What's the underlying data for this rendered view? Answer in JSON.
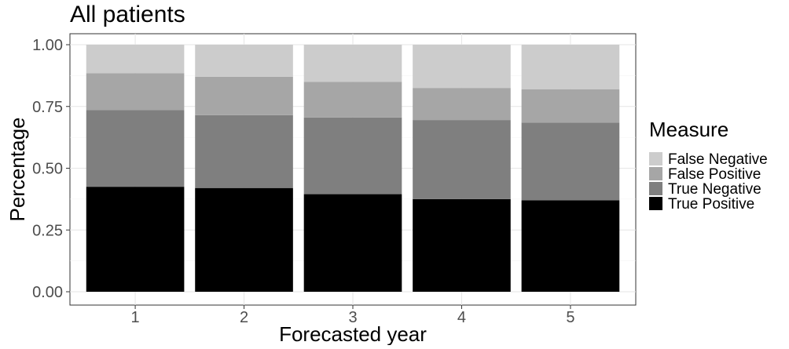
{
  "chart_data": {
    "type": "bar",
    "stacked": true,
    "title": "All patients",
    "xlabel": "Forecasted year",
    "ylabel": "Percentage",
    "categories": [
      "1",
      "2",
      "3",
      "4",
      "5"
    ],
    "ylim": [
      0,
      1
    ],
    "yticks": [
      "0.00",
      "0.25",
      "0.50",
      "0.75",
      "1.00"
    ],
    "grid": true,
    "legend": {
      "title": "Measure",
      "position": "right",
      "entries": [
        "False Negative",
        "False Positive",
        "True Negative",
        "True Positive"
      ]
    },
    "series": [
      {
        "name": "True Positive",
        "color": "#000000",
        "values": [
          0.425,
          0.42,
          0.395,
          0.375,
          0.37
        ]
      },
      {
        "name": "True Negative",
        "color": "#7f7f7f",
        "values": [
          0.31,
          0.295,
          0.31,
          0.32,
          0.315
        ]
      },
      {
        "name": "False Positive",
        "color": "#a6a6a6",
        "values": [
          0.15,
          0.155,
          0.145,
          0.13,
          0.135
        ]
      },
      {
        "name": "False Negative",
        "color": "#cccccc",
        "values": [
          0.115,
          0.13,
          0.15,
          0.175,
          0.18
        ]
      }
    ]
  }
}
